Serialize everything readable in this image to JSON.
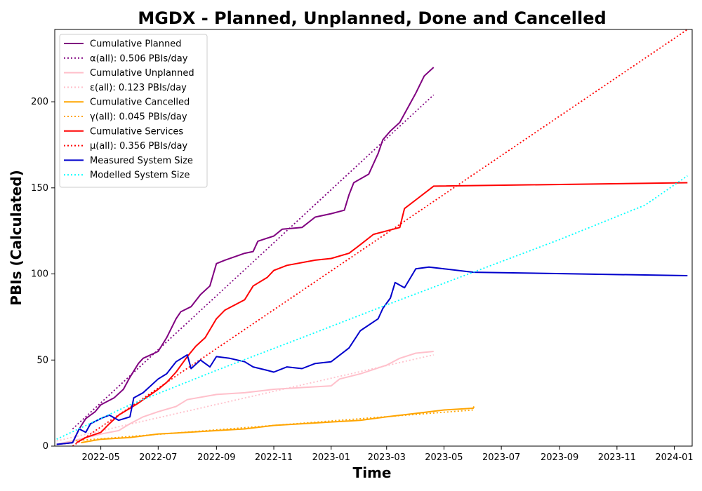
{
  "chart_data": {
    "type": "line",
    "title": "MGDX - Planned, Unplanned, Done  and Cancelled",
    "xlabel": "Time",
    "ylabel": "PBIs (Calculated)",
    "xlim": [
      "2022-03-13",
      "2024-01-20"
    ],
    "ylim": [
      0,
      242
    ],
    "x_ticks": [
      "2022-05",
      "2022-07",
      "2022-09",
      "2022-11",
      "2023-01",
      "2023-03",
      "2023-05",
      "2023-07",
      "2023-09",
      "2023-11",
      "2024-01"
    ],
    "y_ticks": [
      0,
      50,
      100,
      150,
      200
    ],
    "grid": false,
    "legend_position": "upper-left",
    "series": [
      {
        "name": "Cumulative Planned",
        "color": "#800080",
        "style": "solid",
        "points": [
          [
            "2022-03-15",
            1
          ],
          [
            "2022-04-01",
            2
          ],
          [
            "2022-04-08",
            10
          ],
          [
            "2022-04-15",
            16
          ],
          [
            "2022-04-25",
            20
          ],
          [
            "2022-05-01",
            24
          ],
          [
            "2022-05-15",
            28
          ],
          [
            "2022-05-25",
            33
          ],
          [
            "2022-06-01",
            40
          ],
          [
            "2022-06-10",
            48
          ],
          [
            "2022-06-15",
            51
          ],
          [
            "2022-07-01",
            55
          ],
          [
            "2022-07-10",
            63
          ],
          [
            "2022-07-20",
            74
          ],
          [
            "2022-07-25",
            78
          ],
          [
            "2022-08-05",
            81
          ],
          [
            "2022-08-15",
            88
          ],
          [
            "2022-08-25",
            93
          ],
          [
            "2022-09-01",
            106
          ],
          [
            "2022-09-10",
            108
          ],
          [
            "2022-10-01",
            112
          ],
          [
            "2022-10-10",
            113
          ],
          [
            "2022-10-15",
            119
          ],
          [
            "2022-11-01",
            122
          ],
          [
            "2022-11-10",
            126
          ],
          [
            "2022-12-01",
            127
          ],
          [
            "2022-12-15",
            133
          ],
          [
            "2023-01-01",
            135
          ],
          [
            "2023-01-15",
            137
          ],
          [
            "2023-01-20",
            146
          ],
          [
            "2023-01-25",
            153
          ],
          [
            "2023-02-10",
            158
          ],
          [
            "2023-02-20",
            170
          ],
          [
            "2023-02-25",
            178
          ],
          [
            "2023-03-05",
            183
          ],
          [
            "2023-03-15",
            188
          ],
          [
            "2023-03-25",
            198
          ],
          [
            "2023-04-01",
            205
          ],
          [
            "2023-04-10",
            215
          ],
          [
            "2023-04-20",
            220
          ]
        ]
      },
      {
        "name": "α(all): 0.506 PBIs/day",
        "color": "#800080",
        "style": "dotted",
        "points": [
          [
            "2022-04-01",
            10
          ],
          [
            "2023-04-20",
            204
          ]
        ]
      },
      {
        "name": "Cumulative Unplanned",
        "color": "#ffc0cb",
        "style": "solid",
        "points": [
          [
            "2022-03-15",
            1
          ],
          [
            "2022-04-01",
            3
          ],
          [
            "2022-05-01",
            7
          ],
          [
            "2022-05-20",
            9
          ],
          [
            "2022-06-01",
            13
          ],
          [
            "2022-06-15",
            17
          ],
          [
            "2022-07-01",
            20
          ],
          [
            "2022-07-20",
            23
          ],
          [
            "2022-08-01",
            27
          ],
          [
            "2022-09-01",
            30
          ],
          [
            "2022-10-01",
            31
          ],
          [
            "2022-11-01",
            33
          ],
          [
            "2022-12-01",
            34
          ],
          [
            "2023-01-01",
            35
          ],
          [
            "2023-01-10",
            39
          ],
          [
            "2023-02-01",
            42
          ],
          [
            "2023-03-01",
            47
          ],
          [
            "2023-03-15",
            51
          ],
          [
            "2023-04-01",
            54
          ],
          [
            "2023-04-20",
            55
          ]
        ]
      },
      {
        "name": "ε(all): 0.123 PBIs/day",
        "color": "#ffc0cb",
        "style": "dotted",
        "points": [
          [
            "2022-03-15",
            3
          ],
          [
            "2023-04-20",
            53
          ]
        ]
      },
      {
        "name": "Cumulative Cancelled",
        "color": "#ffa500",
        "style": "solid",
        "points": [
          [
            "2022-04-10",
            2
          ],
          [
            "2022-05-01",
            4
          ],
          [
            "2022-06-01",
            5
          ],
          [
            "2022-07-01",
            7
          ],
          [
            "2022-08-01",
            8
          ],
          [
            "2022-09-01",
            9
          ],
          [
            "2022-10-01",
            10
          ],
          [
            "2022-11-01",
            12
          ],
          [
            "2022-12-01",
            13
          ],
          [
            "2023-01-01",
            14
          ],
          [
            "2023-02-01",
            15
          ],
          [
            "2023-03-01",
            17
          ],
          [
            "2023-04-01",
            19
          ],
          [
            "2023-05-01",
            21
          ],
          [
            "2023-06-01",
            22
          ],
          [
            "2023-06-02",
            23
          ]
        ]
      },
      {
        "name": "γ(all): 0.045 PBIs/day",
        "color": "#ffa500",
        "style": "dotted",
        "points": [
          [
            "2022-04-01",
            3
          ],
          [
            "2023-06-01",
            21
          ]
        ]
      },
      {
        "name": "Cumulative Services",
        "color": "#ff0000",
        "style": "solid",
        "points": [
          [
            "2022-04-05",
            2
          ],
          [
            "2022-04-15",
            5
          ],
          [
            "2022-05-01",
            8
          ],
          [
            "2022-05-10",
            13
          ],
          [
            "2022-05-20",
            18
          ],
          [
            "2022-06-01",
            22
          ],
          [
            "2022-06-10",
            25
          ],
          [
            "2022-07-01",
            33
          ],
          [
            "2022-07-10",
            37
          ],
          [
            "2022-07-20",
            43
          ],
          [
            "2022-08-01",
            52
          ],
          [
            "2022-08-10",
            58
          ],
          [
            "2022-08-20",
            63
          ],
          [
            "2022-09-01",
            74
          ],
          [
            "2022-09-10",
            79
          ],
          [
            "2022-10-01",
            85
          ],
          [
            "2022-10-10",
            93
          ],
          [
            "2022-10-25",
            98
          ],
          [
            "2022-11-01",
            102
          ],
          [
            "2022-11-15",
            105
          ],
          [
            "2022-12-15",
            108
          ],
          [
            "2023-01-01",
            109
          ],
          [
            "2023-01-20",
            112
          ],
          [
            "2023-02-01",
            117
          ],
          [
            "2023-02-15",
            123
          ],
          [
            "2023-03-15",
            127
          ],
          [
            "2023-03-20",
            138
          ],
          [
            "2023-04-01",
            143
          ],
          [
            "2023-04-20",
            151
          ],
          [
            "2024-01-15",
            153
          ]
        ]
      },
      {
        "name": "μ(all): 0.356 PBIs/day",
        "color": "#ff0000",
        "style": "dotted",
        "points": [
          [
            "2022-04-01",
            0
          ],
          [
            "2024-01-15",
            242
          ]
        ]
      },
      {
        "name": "Measured System Size",
        "color": "#0000cc",
        "style": "solid",
        "points": [
          [
            "2022-03-15",
            1
          ],
          [
            "2022-04-01",
            2
          ],
          [
            "2022-04-08",
            10
          ],
          [
            "2022-04-15",
            8
          ],
          [
            "2022-04-20",
            13
          ],
          [
            "2022-05-01",
            16
          ],
          [
            "2022-05-10",
            18
          ],
          [
            "2022-05-20",
            15
          ],
          [
            "2022-06-01",
            17
          ],
          [
            "2022-06-05",
            28
          ],
          [
            "2022-06-15",
            31
          ],
          [
            "2022-07-01",
            39
          ],
          [
            "2022-07-10",
            42
          ],
          [
            "2022-07-20",
            49
          ],
          [
            "2022-08-01",
            53
          ],
          [
            "2022-08-05",
            45
          ],
          [
            "2022-08-15",
            50
          ],
          [
            "2022-08-25",
            46
          ],
          [
            "2022-09-01",
            52
          ],
          [
            "2022-09-15",
            51
          ],
          [
            "2022-10-01",
            49
          ],
          [
            "2022-10-10",
            46
          ],
          [
            "2022-10-25",
            44
          ],
          [
            "2022-11-01",
            43
          ],
          [
            "2022-11-15",
            46
          ],
          [
            "2022-12-01",
            45
          ],
          [
            "2022-12-15",
            48
          ],
          [
            "2023-01-01",
            49
          ],
          [
            "2023-01-20",
            57
          ],
          [
            "2023-02-01",
            67
          ],
          [
            "2023-02-20",
            74
          ],
          [
            "2023-02-25",
            80
          ],
          [
            "2023-03-05",
            86
          ],
          [
            "2023-03-10",
            95
          ],
          [
            "2023-03-20",
            92
          ],
          [
            "2023-04-01",
            103
          ],
          [
            "2023-04-15",
            104
          ],
          [
            "2023-05-01",
            103
          ],
          [
            "2023-06-01",
            101
          ],
          [
            "2024-01-15",
            99
          ]
        ]
      },
      {
        "name": "Modelled System Size",
        "color": "#00ffff",
        "style": "dotted",
        "points": [
          [
            "2022-03-15",
            4
          ],
          [
            "2022-06-01",
            24
          ],
          [
            "2022-09-01",
            44
          ],
          [
            "2022-12-01",
            63
          ],
          [
            "2023-03-01",
            82
          ],
          [
            "2023-06-01",
            101
          ],
          [
            "2023-09-01",
            120
          ],
          [
            "2023-12-01",
            140
          ],
          [
            "2024-01-15",
            157
          ]
        ]
      }
    ]
  }
}
